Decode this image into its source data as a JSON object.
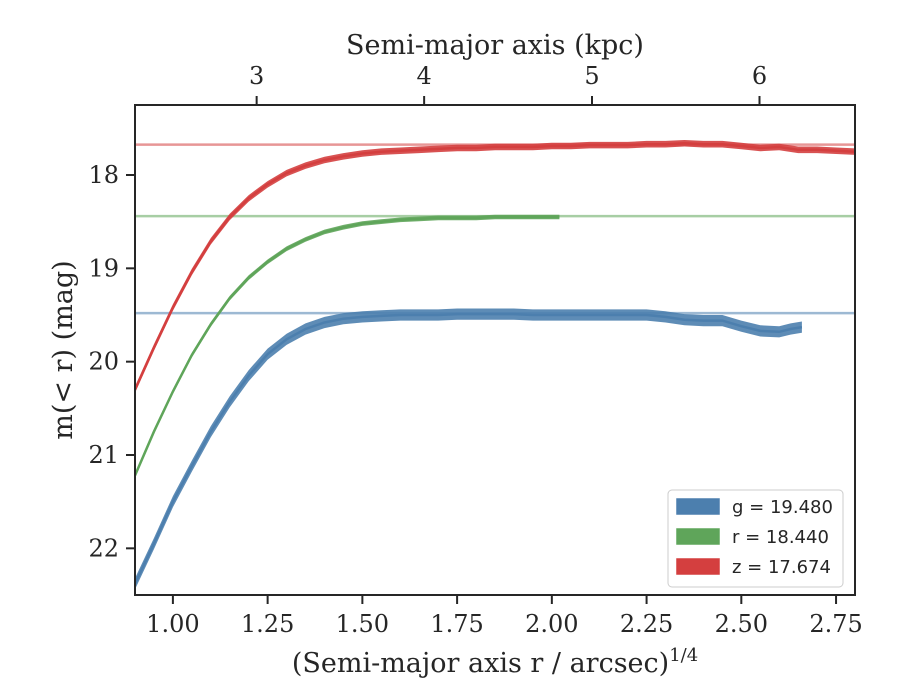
{
  "chart_data": {
    "type": "line",
    "xlabel_bottom": "(Semi-major axis r / arcsec)",
    "xlabel_bottom_sup": "1/4",
    "xlabel_top": "Semi-major axis (kpc)",
    "ylabel": "m(< r) (mag)",
    "xlim": [
      0.9,
      2.8
    ],
    "ylim": [
      22.5,
      17.25
    ],
    "y_inverted": true,
    "x_ticks": [
      1.0,
      1.25,
      1.5,
      1.75,
      2.0,
      2.25,
      2.5,
      2.75
    ],
    "x_tick_labels": [
      "1.00",
      "1.25",
      "1.50",
      "1.75",
      "2.00",
      "2.25",
      "2.50",
      "2.75"
    ],
    "y_ticks": [
      18,
      19,
      20,
      21,
      22
    ],
    "y_tick_labels": [
      "18",
      "19",
      "20",
      "21",
      "22"
    ],
    "top_ticks": [
      {
        "label": "3",
        "x": 1.221
      },
      {
        "label": "4",
        "x": 1.663
      },
      {
        "label": "5",
        "x": 2.106
      },
      {
        "label": "6",
        "x": 2.548
      }
    ],
    "legend_position": "lower right",
    "series": [
      {
        "name": "g",
        "legend_label": "g = 19.480",
        "color": "#4c7fae",
        "band_width": 0.12,
        "model_value": 19.48,
        "x": [
          0.9,
          0.95,
          1.0,
          1.05,
          1.1,
          1.15,
          1.2,
          1.25,
          1.3,
          1.35,
          1.4,
          1.45,
          1.5,
          1.55,
          1.6,
          1.65,
          1.7,
          1.75,
          1.8,
          1.85,
          1.9,
          1.95,
          2.0,
          2.05,
          2.1,
          2.15,
          2.2,
          2.25,
          2.3,
          2.35,
          2.4,
          2.45,
          2.5,
          2.55,
          2.6,
          2.63,
          2.66
        ],
        "y": [
          22.38,
          21.95,
          21.5,
          21.12,
          20.75,
          20.43,
          20.15,
          19.92,
          19.76,
          19.65,
          19.58,
          19.54,
          19.52,
          19.51,
          19.5,
          19.5,
          19.5,
          19.49,
          19.49,
          19.49,
          19.49,
          19.5,
          19.5,
          19.5,
          19.5,
          19.5,
          19.5,
          19.5,
          19.52,
          19.55,
          19.56,
          19.56,
          19.62,
          19.67,
          19.68,
          19.65,
          19.63
        ]
      },
      {
        "name": "r",
        "legend_label": "r = 18.440",
        "color": "#5fa55a",
        "band_width": 0.05,
        "model_value": 18.44,
        "x": [
          0.9,
          0.95,
          1.0,
          1.05,
          1.1,
          1.15,
          1.2,
          1.25,
          1.3,
          1.35,
          1.4,
          1.45,
          1.5,
          1.55,
          1.6,
          1.65,
          1.7,
          1.75,
          1.8,
          1.85,
          1.9,
          1.95,
          2.0,
          2.02
        ],
        "y": [
          21.22,
          20.75,
          20.32,
          19.93,
          19.6,
          19.32,
          19.1,
          18.93,
          18.79,
          18.69,
          18.61,
          18.56,
          18.52,
          18.5,
          18.48,
          18.47,
          18.46,
          18.46,
          18.46,
          18.45,
          18.45,
          18.45,
          18.45,
          18.45
        ]
      },
      {
        "name": "z",
        "legend_label": "z = 17.674",
        "color": "#d43f3f",
        "band_width": 0.07,
        "model_value": 17.674,
        "x": [
          0.9,
          0.95,
          1.0,
          1.05,
          1.1,
          1.15,
          1.2,
          1.25,
          1.3,
          1.35,
          1.4,
          1.45,
          1.5,
          1.55,
          1.6,
          1.65,
          1.7,
          1.75,
          1.8,
          1.85,
          1.9,
          1.95,
          2.0,
          2.05,
          2.1,
          2.15,
          2.2,
          2.25,
          2.3,
          2.35,
          2.4,
          2.45,
          2.5,
          2.55,
          2.6,
          2.65,
          2.7,
          2.75,
          2.8
        ],
        "y": [
          20.3,
          19.85,
          19.42,
          19.04,
          18.71,
          18.45,
          18.25,
          18.1,
          17.98,
          17.9,
          17.84,
          17.8,
          17.77,
          17.75,
          17.74,
          17.73,
          17.72,
          17.71,
          17.71,
          17.7,
          17.7,
          17.7,
          17.69,
          17.69,
          17.68,
          17.68,
          17.68,
          17.67,
          17.67,
          17.66,
          17.67,
          17.67,
          17.69,
          17.71,
          17.7,
          17.73,
          17.73,
          17.74,
          17.75
        ]
      }
    ]
  }
}
